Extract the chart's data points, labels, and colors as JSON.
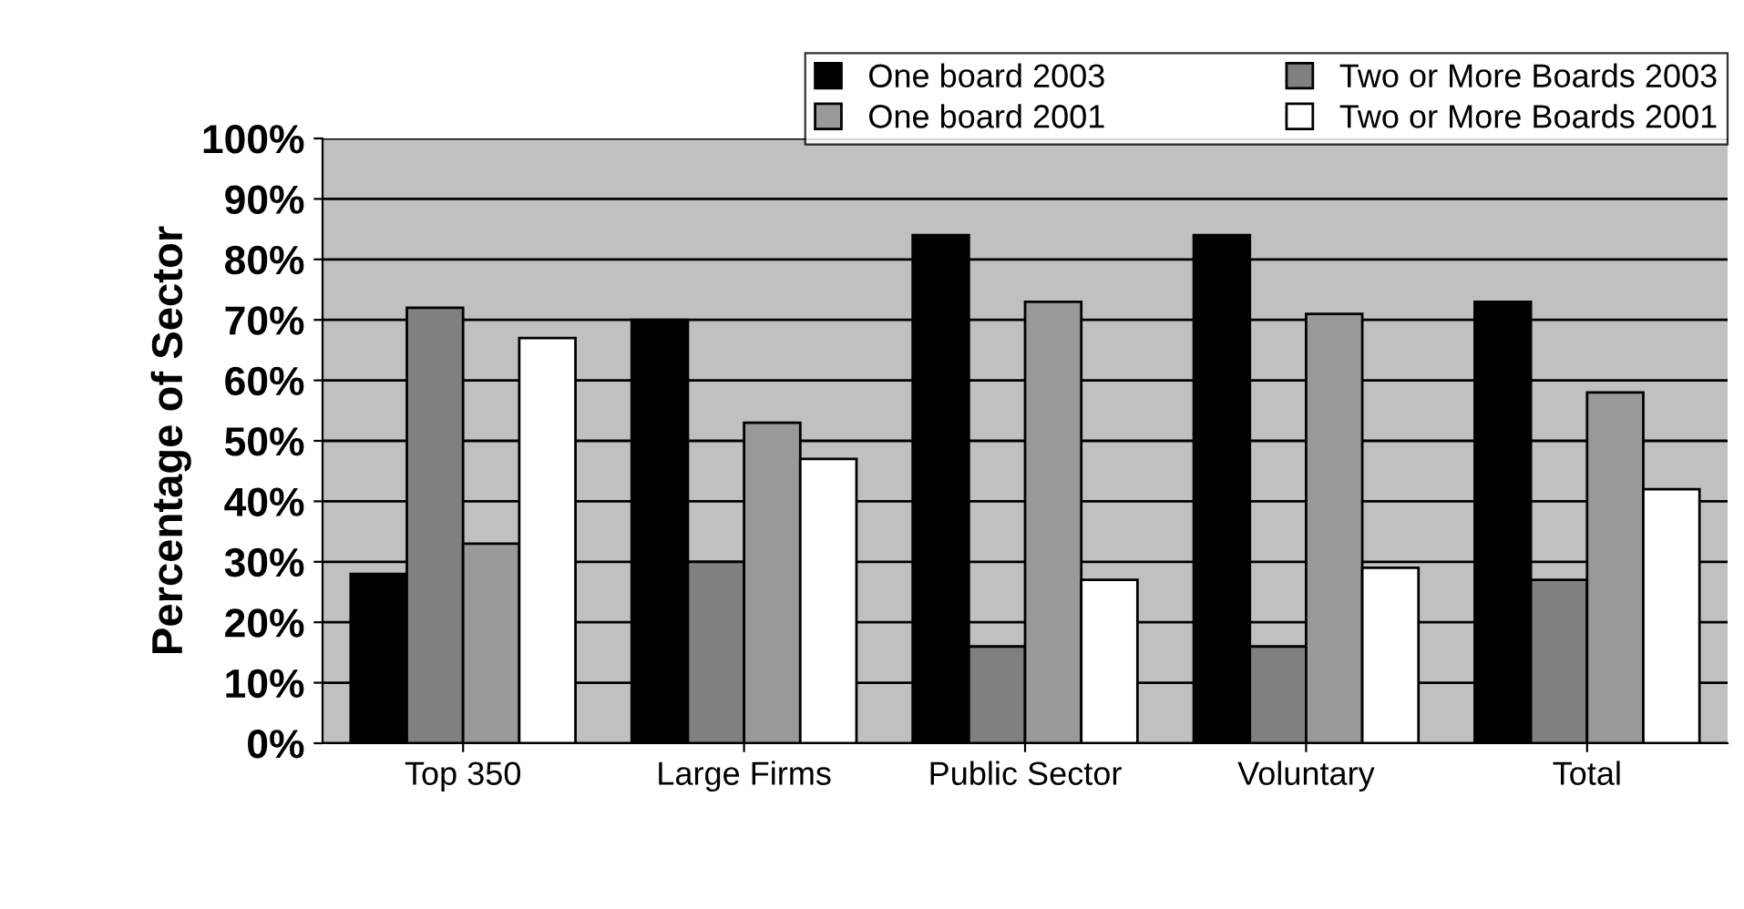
{
  "chart_data": {
    "type": "bar",
    "ylabel": "Percentage of Sector",
    "categories": [
      "Top 350",
      "Large Firms",
      "Public Sector",
      "Voluntary",
      "Total"
    ],
    "series": [
      {
        "name": "One board 2003",
        "color": "#000000",
        "values": [
          28,
          70,
          84,
          84,
          73
        ]
      },
      {
        "name": "Two or More Boards 2003",
        "color": "#808080",
        "values": [
          72,
          30,
          16,
          16,
          27
        ]
      },
      {
        "name": "One board 2001",
        "color": "#999999",
        "values": [
          33,
          53,
          73,
          71,
          58
        ]
      },
      {
        "name": "Two or More Boards 2001",
        "color": "#ffffff",
        "values": [
          67,
          47,
          27,
          29,
          42
        ]
      }
    ],
    "ylim": [
      0,
      100
    ],
    "yticks": [
      {
        "value": 0,
        "label": "0%"
      },
      {
        "value": 10,
        "label": "10%"
      },
      {
        "value": 20,
        "label": "20%"
      },
      {
        "value": 30,
        "label": "30%"
      },
      {
        "value": 40,
        "label": "40%"
      },
      {
        "value": 50,
        "label": "50%"
      },
      {
        "value": 60,
        "label": "60%"
      },
      {
        "value": 70,
        "label": "70%"
      },
      {
        "value": 80,
        "label": "80%"
      },
      {
        "value": 90,
        "label": "90%"
      },
      {
        "value": 100,
        "label": "100%"
      }
    ],
    "grid": "y",
    "legend": "top right"
  }
}
